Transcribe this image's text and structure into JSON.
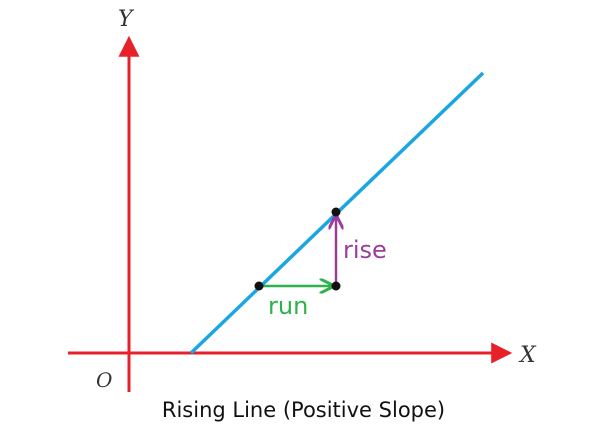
{
  "labels": {
    "y_axis": "Y",
    "x_axis": "X",
    "origin": "O",
    "run": "run",
    "rise": "rise"
  },
  "caption": "Rising Line (Positive Slope)",
  "colors": {
    "axes": "#e8202a",
    "line": "#1aa6e0",
    "run": "#2db34a",
    "rise": "#9b3d9b",
    "points": "#111111"
  }
}
